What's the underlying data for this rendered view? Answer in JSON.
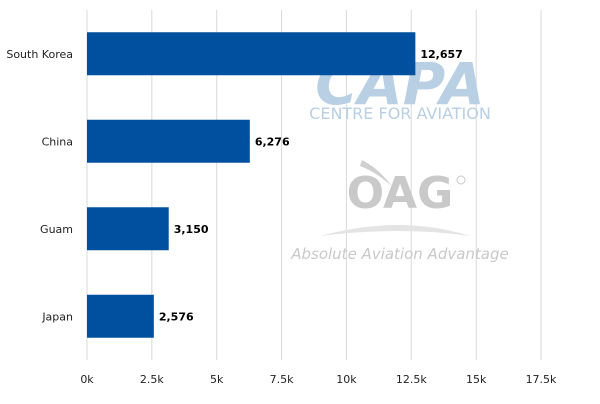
{
  "watermarks": {
    "capa_logo": "CAPA",
    "capa_subtitle": "CENTRE FOR AVIATION",
    "oag_logo": "OAG",
    "oag_tagline": "Absolute Aviation Advantage",
    "capa_color": "#b9cfe3",
    "oag_color": "#c9c9c9"
  },
  "chart_data": {
    "type": "bar",
    "orientation": "horizontal",
    "categories": [
      "South Korea",
      "China",
      "Guam",
      "Japan"
    ],
    "values": [
      12657,
      6276,
      3150,
      2576
    ],
    "value_labels": [
      "12,657",
      "6,276",
      "3,150",
      "2,576"
    ],
    "x_ticks": [
      "0k",
      "2.5k",
      "5k",
      "7.5k",
      "10k",
      "12.5k",
      "15k",
      "17.5k"
    ],
    "xlim": [
      0,
      17500
    ],
    "bar_color": "#0050a0",
    "grid": true,
    "legend": "none"
  }
}
